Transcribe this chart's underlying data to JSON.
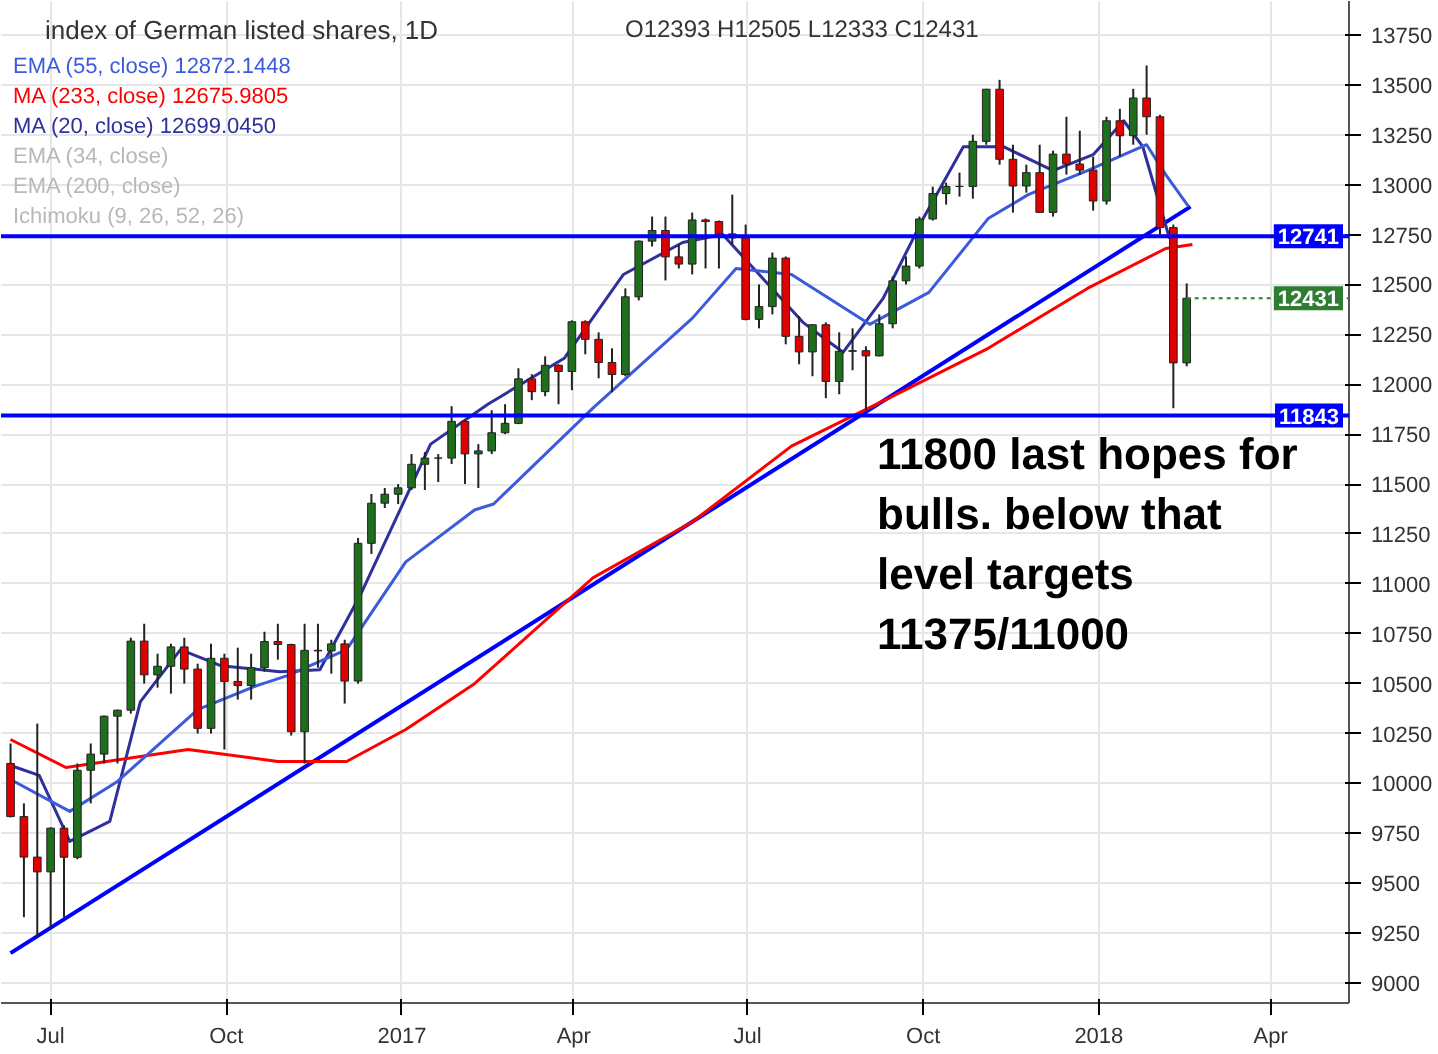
{
  "chart_data": {
    "type": "candlestick",
    "title": "index of German listed shares, 1D",
    "subtitle": "O12393 H12505 L12333 C12431",
    "annotations": [
      "EMA (34, close)",
      "EMA (200, close)",
      "Ichimoku (9, 26, 52, 26)",
      {
        "text": "12431",
        "x": "2018-02-16",
        "y": 12431
      },
      "11800 last hopes for bulls. below that level targets 11375/11000"
    ],
    "x": [
      "2016-06-10",
      "2016-06-17",
      "2016-06-24",
      "2016-07-01",
      "2016-07-08",
      "2016-07-15",
      "2016-07-22",
      "2016-07-29",
      "2016-08-05",
      "2016-08-12",
      "2016-08-19",
      "2016-08-26",
      "2016-09-02",
      "2016-09-09",
      "2016-09-16",
      "2016-09-23",
      "2016-09-30",
      "2016-10-07",
      "2016-10-14",
      "2016-10-21",
      "2016-10-28",
      "2016-11-04",
      "2016-11-11",
      "2016-11-18",
      "2016-11-25",
      "2016-12-02",
      "2016-12-09",
      "2016-12-16",
      "2016-12-23",
      "2016-12-30",
      "2017-01-06",
      "2017-01-13",
      "2017-01-20",
      "2017-01-27",
      "2017-02-03",
      "2017-02-10",
      "2017-02-17",
      "2017-02-24",
      "2017-03-03",
      "2017-03-10",
      "2017-03-17",
      "2017-03-24",
      "2017-03-31",
      "2017-04-07",
      "2017-04-14",
      "2017-04-21",
      "2017-04-28",
      "2017-05-05",
      "2017-05-12",
      "2017-05-19",
      "2017-05-26",
      "2017-06-02",
      "2017-06-09",
      "2017-06-16",
      "2017-06-23",
      "2017-06-30",
      "2017-07-07",
      "2017-07-14",
      "2017-07-21",
      "2017-07-28",
      "2017-08-04",
      "2017-08-11",
      "2017-08-18",
      "2017-08-25",
      "2017-09-01",
      "2017-09-08",
      "2017-09-15",
      "2017-09-22",
      "2017-09-29",
      "2017-10-06",
      "2017-10-13",
      "2017-10-20",
      "2017-10-27",
      "2017-11-03",
      "2017-11-10",
      "2017-11-17",
      "2017-11-24",
      "2017-12-01",
      "2017-12-08",
      "2017-12-15",
      "2017-12-22",
      "2017-12-29",
      "2018-01-05",
      "2018-01-12",
      "2018-01-19",
      "2018-01-26",
      "2018-02-02",
      "2018-02-09",
      "2018-02-16"
    ],
    "ohlc": [
      [
        10100,
        10200,
        9830,
        9834
      ],
      [
        9834,
        9900,
        9330,
        9631
      ],
      [
        9631,
        10300,
        9225,
        9557
      ],
      [
        9557,
        9780,
        9270,
        9776
      ],
      [
        9776,
        9790,
        9330,
        9630
      ],
      [
        9630,
        10100,
        9620,
        10066
      ],
      [
        10066,
        10200,
        9900,
        10147
      ],
      [
        10147,
        10340,
        10100,
        10337
      ],
      [
        10337,
        10370,
        10100,
        10367
      ],
      [
        10367,
        10730,
        10350,
        10713
      ],
      [
        10713,
        10800,
        10500,
        10544
      ],
      [
        10544,
        10650,
        10480,
        10587
      ],
      [
        10587,
        10700,
        10450,
        10684
      ],
      [
        10684,
        10730,
        10500,
        10573
      ],
      [
        10573,
        10600,
        10250,
        10276
      ],
      [
        10276,
        10700,
        10250,
        10627
      ],
      [
        10627,
        10650,
        10170,
        10511
      ],
      [
        10511,
        10680,
        10420,
        10490
      ],
      [
        10490,
        10650,
        10420,
        10580
      ],
      [
        10580,
        10760,
        10560,
        10711
      ],
      [
        10711,
        10800,
        10620,
        10696
      ],
      [
        10696,
        10700,
        10240,
        10259
      ],
      [
        10259,
        10800,
        10100,
        10667
      ],
      [
        10667,
        10800,
        10580,
        10664
      ],
      [
        10664,
        10720,
        10550,
        10699
      ],
      [
        10699,
        10720,
        10400,
        10513
      ],
      [
        10513,
        11230,
        10500,
        11203
      ],
      [
        11203,
        11450,
        11150,
        11404
      ],
      [
        11404,
        11480,
        11380,
        11449
      ],
      [
        11449,
        11500,
        11400,
        11481
      ],
      [
        11481,
        11650,
        11470,
        11599
      ],
      [
        11599,
        11660,
        11470,
        11630
      ],
      [
        11630,
        11650,
        11510,
        11630
      ],
      [
        11630,
        11890,
        11600,
        11814
      ],
      [
        11814,
        11820,
        11500,
        11651
      ],
      [
        11651,
        11700,
        11480,
        11666
      ],
      [
        11666,
        11870,
        11650,
        11757
      ],
      [
        11757,
        11900,
        11750,
        11804
      ],
      [
        11804,
        12080,
        11800,
        12027
      ],
      [
        12027,
        12050,
        11920,
        11963
      ],
      [
        11963,
        12140,
        11940,
        12095
      ],
      [
        12095,
        12100,
        11900,
        12064
      ],
      [
        12064,
        12320,
        11970,
        12313
      ],
      [
        12313,
        12320,
        12150,
        12225
      ],
      [
        12225,
        12260,
        12030,
        12109
      ],
      [
        12109,
        12180,
        11960,
        12049
      ],
      [
        12049,
        12480,
        12040,
        12438
      ],
      [
        12438,
        12720,
        12420,
        12717
      ],
      [
        12717,
        12840,
        12690,
        12770
      ],
      [
        12770,
        12840,
        12520,
        12638
      ],
      [
        12638,
        12700,
        12580,
        12602
      ],
      [
        12602,
        12860,
        12550,
        12823
      ],
      [
        12823,
        12830,
        12580,
        12815
      ],
      [
        12815,
        12820,
        12580,
        12753
      ],
      [
        12753,
        12950,
        12700,
        12733
      ],
      [
        12733,
        12800,
        12320,
        12325
      ],
      [
        12325,
        12500,
        12280,
        12389
      ],
      [
        12389,
        12660,
        12350,
        12632
      ],
      [
        12632,
        12640,
        12200,
        12240
      ],
      [
        12240,
        12340,
        12100,
        12162
      ],
      [
        12162,
        12300,
        12040,
        12298
      ],
      [
        12298,
        12310,
        11930,
        12014
      ],
      [
        12014,
        12260,
        11950,
        12165
      ],
      [
        12165,
        12280,
        12070,
        12168
      ],
      [
        12168,
        12190,
        11870,
        12142
      ],
      [
        12142,
        12350,
        12140,
        12303
      ],
      [
        12303,
        12540,
        12280,
        12518
      ],
      [
        12518,
        12640,
        12500,
        12592
      ],
      [
        12592,
        12840,
        12580,
        12828
      ],
      [
        12828,
        12990,
        12820,
        12955
      ],
      [
        12955,
        13010,
        12900,
        12991
      ],
      [
        12991,
        13060,
        12940,
        12991
      ],
      [
        12991,
        13250,
        12930,
        13217
      ],
      [
        13217,
        13480,
        13200,
        13478
      ],
      [
        13478,
        13525,
        13100,
        13127
      ],
      [
        13127,
        13200,
        12860,
        12993
      ],
      [
        12993,
        13100,
        12960,
        13060
      ],
      [
        13060,
        13200,
        12860,
        12861
      ],
      [
        12861,
        13170,
        12840,
        13153
      ],
      [
        13153,
        13340,
        13050,
        13103
      ],
      [
        13103,
        13270,
        13050,
        13073
      ],
      [
        13073,
        13140,
        12870,
        12918
      ],
      [
        12918,
        13340,
        12900,
        13320
      ],
      [
        13320,
        13380,
        13140,
        13245
      ],
      [
        13245,
        13480,
        13200,
        13434
      ],
      [
        13434,
        13597,
        13250,
        13340
      ],
      [
        13340,
        13350,
        12750,
        12785
      ],
      [
        12785,
        12800,
        11880,
        12107
      ],
      [
        12107,
        12505,
        12090,
        12431
      ]
    ],
    "series": [
      {
        "name": "EMA (55, close) 12872.1448",
        "type": "line",
        "color": "#3c5adc",
        "x": [
          "2016-06-10",
          "2016-07-11",
          "2016-08-05",
          "2016-09-16",
          "2016-10-17",
          "2016-11-02",
          "2016-12-03",
          "2017-01-03",
          "2017-02-08",
          "2017-02-18",
          "2017-04-11",
          "2017-06-02",
          "2017-06-25",
          "2017-07-24",
          "2017-09-03",
          "2017-10-04",
          "2017-11-04",
          "2017-11-25",
          "2017-12-26",
          "2018-01-26",
          "2018-02-05",
          "2018-02-17"
        ],
        "values": [
          10020,
          9860,
          10010,
          10370,
          10490,
          10540,
          10670,
          11110,
          11370,
          11400,
          11880,
          12330,
          12580,
          12550,
          12300,
          12460,
          12830,
          12950,
          13070,
          13200,
          13050,
          12890
        ]
      },
      {
        "name": "MA (233, close) 12675.9805",
        "type": "line",
        "color": "#ff0000",
        "x": [
          "2016-06-10",
          "2016-07-09",
          "2016-09-11",
          "2016-10-28",
          "2016-12-03",
          "2017-01-03",
          "2017-02-08",
          "2017-04-11",
          "2017-06-02",
          "2017-07-24",
          "2017-09-13",
          "2017-11-04",
          "2017-12-26",
          "2018-02-05",
          "2018-02-19"
        ],
        "values": [
          10220,
          10080,
          10170,
          10110,
          10110,
          10270,
          10500,
          11030,
          11310,
          11690,
          11930,
          12180,
          12480,
          12680,
          12700
        ]
      },
      {
        "name": "MA (20, close) 12699.0450",
        "type": "line",
        "color": "#30309c",
        "x": [
          "2016-06-10",
          "2016-06-25",
          "2016-07-11",
          "2016-08-01",
          "2016-08-17",
          "2016-09-07",
          "2016-09-28",
          "2016-10-29",
          "2016-11-19",
          "2016-12-10",
          "2016-12-31",
          "2017-01-16",
          "2017-02-15",
          "2017-03-27",
          "2017-04-27",
          "2017-05-28",
          "2017-06-18",
          "2017-07-09",
          "2017-07-30",
          "2017-08-20",
          "2017-09-10",
          "2017-10-01",
          "2017-10-22",
          "2017-11-12",
          "2017-12-08",
          "2017-12-29",
          "2018-01-14",
          "2018-01-24",
          "2018-02-07"
        ],
        "values": [
          10090,
          10040,
          9710,
          9810,
          10410,
          10670,
          10590,
          10560,
          10570,
          10940,
          11370,
          11700,
          11900,
          12130,
          12550,
          12710,
          12750,
          12530,
          12310,
          12160,
          12430,
          12830,
          13190,
          13190,
          13070,
          13150,
          13320,
          13190,
          12730
        ]
      },
      {
        "type": "line",
        "color": "#0000ff",
        "x": [
          "2016-06-10",
          "2018-02-18"
        ],
        "values": [
          9150,
          12890
        ]
      }
    ],
    "ref_lines": [
      {
        "axis": "y",
        "value": 12741,
        "label": "12741",
        "color": "#0000ff"
      },
      {
        "axis": "y",
        "value": 11843,
        "label": "11843",
        "color": "#0000ff"
      }
    ],
    "xlim": [
      "2016-06-05",
      "2018-05-12"
    ],
    "xticks": [
      {
        "value": "2016-07-01",
        "label": "Jul"
      },
      {
        "value": "2016-10-01",
        "label": "Oct"
      },
      {
        "value": "2017-01-01",
        "label": "2017"
      },
      {
        "value": "2017-04-01",
        "label": "Apr"
      },
      {
        "value": "2017-07-01",
        "label": "Jul"
      },
      {
        "value": "2017-10-01",
        "label": "Oct"
      },
      {
        "value": "2018-01-01",
        "label": "2018"
      },
      {
        "value": "2018-04-01",
        "label": "Apr"
      }
    ],
    "ylim": [
      8900,
      13920
    ],
    "yticks": [
      9000,
      9250,
      9500,
      9750,
      10000,
      10250,
      10500,
      10750,
      11000,
      11250,
      11500,
      11750,
      12000,
      12250,
      12500,
      12750,
      13000,
      13250,
      13500,
      13750
    ],
    "grid": true,
    "legend": "top left"
  }
}
